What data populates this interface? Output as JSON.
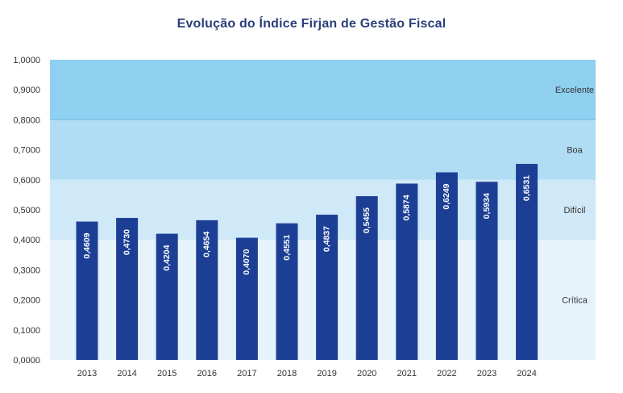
{
  "chart_data": {
    "type": "bar",
    "title": "Evolução do Índice Firjan de Gestão Fiscal",
    "xlabel": "",
    "ylabel": "",
    "ylim": [
      0,
      1
    ],
    "yticks": [
      "0,0000",
      "0,1000",
      "0,2000",
      "0,3000",
      "0,4000",
      "0,5000",
      "0,6000",
      "0,7000",
      "0,8000",
      "0,9000",
      "1,0000"
    ],
    "categories": [
      "2013",
      "2014",
      "2015",
      "2016",
      "2017",
      "2018",
      "2019",
      "2020",
      "2021",
      "2022",
      "2023",
      "2024"
    ],
    "values": [
      0.4609,
      0.473,
      0.4204,
      0.4654,
      0.407,
      0.4551,
      0.4837,
      0.5455,
      0.5874,
      0.6249,
      0.5934,
      0.6531
    ],
    "value_labels": [
      "0,4609",
      "0,4730",
      "0,4204",
      "0,4654",
      "0,4070",
      "0,4551",
      "0,4837",
      "0,5455",
      "0,5874",
      "0,6249",
      "0,5934",
      "0,6531"
    ],
    "bands": [
      {
        "label": "Crítica",
        "from": 0.0,
        "to": 0.4,
        "color": "#e6f3fb"
      },
      {
        "label": "Difícil",
        "from": 0.4,
        "to": 0.6,
        "color": "#d0e9f8"
      },
      {
        "label": "Boa",
        "from": 0.6,
        "to": 0.8,
        "color": "#b1ddf4"
      },
      {
        "label": "Excelente",
        "from": 0.8,
        "to": 1.0,
        "color": "#8fd0f0"
      }
    ],
    "bar_color": "#1c3f95",
    "grid": false
  }
}
